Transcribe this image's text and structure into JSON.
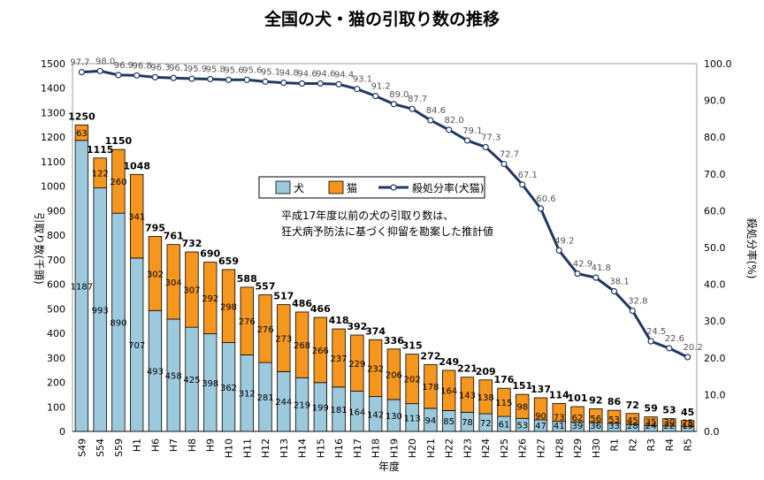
{
  "chart_data": {
    "type": "bar",
    "title": "全国の犬・猫の引取り数の推移",
    "xlabel": "年度",
    "ylabel": "引取り数(千頭)",
    "y2label": "殺処分率(%)",
    "ylim": [
      0,
      1500
    ],
    "y2lim": [
      0,
      100
    ],
    "yticks": [
      "0",
      "100",
      "200",
      "300",
      "400",
      "500",
      "600",
      "700",
      "800",
      "900",
      "1000",
      "1100",
      "1200",
      "1300",
      "1400",
      "1500"
    ],
    "y2ticks": [
      "0.0",
      "10.0",
      "20.0",
      "30.0",
      "40.0",
      "50.0",
      "60.0",
      "70.0",
      "80.0",
      "90.0",
      "100.0"
    ],
    "categories": [
      "S49",
      "S54",
      "S59",
      "H1",
      "H6",
      "H7",
      "H8",
      "H9",
      "H10",
      "H11",
      "H12",
      "H13",
      "H14",
      "H15",
      "H16",
      "H17",
      "H18",
      "H19",
      "H20",
      "H21",
      "H22",
      "H23",
      "H24",
      "H25",
      "H26",
      "H27",
      "H28",
      "H29",
      "H30",
      "R1",
      "R2",
      "R3",
      "R4",
      "R5"
    ],
    "totals": [
      1250,
      1115,
      1150,
      1048,
      795,
      761,
      732,
      690,
      659,
      588,
      557,
      517,
      486,
      466,
      418,
      392,
      374,
      336,
      315,
      272,
      249,
      221,
      209,
      176,
      151,
      137,
      114,
      101,
      92,
      86,
      72,
      59,
      53,
      45
    ],
    "series": [
      {
        "name": "犬",
        "color": "#9dc9dc",
        "values": [
          1187,
          993,
          890,
          707,
          493,
          458,
          425,
          398,
          362,
          312,
          281,
          244,
          219,
          199,
          181,
          164,
          142,
          130,
          113,
          94,
          85,
          78,
          72,
          61,
          53,
          47,
          41,
          39,
          36,
          33,
          28,
          24,
          22,
          19
        ]
      },
      {
        "name": "猫",
        "color": "#f5961e",
        "values": [
          63,
          122,
          260,
          341,
          302,
          304,
          307,
          292,
          298,
          276,
          276,
          273,
          268,
          266,
          237,
          229,
          232,
          206,
          202,
          178,
          164,
          143,
          138,
          115,
          98,
          90,
          73,
          62,
          56,
          53,
          45,
          35,
          30,
          25
        ]
      },
      {
        "name": "殺処分率(犬猫)",
        "color": "#1f3864",
        "axis": "right",
        "values": [
          97.7,
          98.0,
          96.9,
          96.8,
          96.3,
          96.1,
          95.9,
          95.8,
          95.6,
          95.6,
          95.1,
          94.8,
          94.6,
          94.6,
          94.4,
          93.1,
          91.2,
          89.0,
          87.7,
          84.6,
          82.0,
          79.1,
          77.3,
          72.7,
          67.1,
          60.6,
          49.2,
          42.9,
          41.8,
          38.1,
          32.8,
          24.5,
          22.6,
          20.2
        ]
      }
    ],
    "annotation": [
      "平成17年度以前の犬の引取り数は、",
      "狂犬病予防法に基づく抑留を勘案した推計値"
    ],
    "legend_position": "top-center"
  }
}
